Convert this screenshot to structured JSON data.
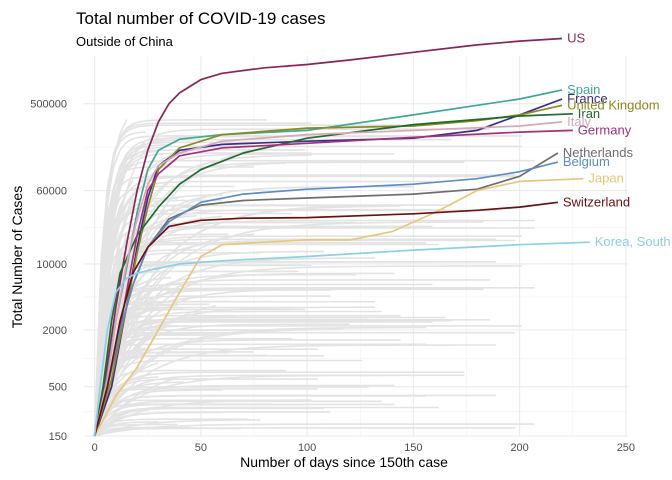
{
  "chart_data": {
    "type": "line",
    "title": "Total number of COVID-19 cases",
    "subtitle": "Outside of China",
    "xlabel": "Number of days since 150th case",
    "ylabel": "Total Number of Cases",
    "xlim": [
      -5,
      251
    ],
    "ylim": [
      150,
      1600000
    ],
    "yscale": "log",
    "xticks": [
      0,
      50,
      100,
      150,
      200,
      250
    ],
    "yticks": [
      150,
      500,
      2000,
      10000,
      60000,
      500000
    ],
    "ytick_labels": [
      "150",
      "500",
      "2000",
      "10000",
      "60000",
      "500000"
    ],
    "grid": true,
    "background_series_color": "#e3e3e3",
    "highlighted_series": [
      {
        "name": "US",
        "color": "#8b2456",
        "points": [
          [
            0,
            150
          ],
          [
            5,
            600
          ],
          [
            10,
            3500
          ],
          [
            15,
            16000
          ],
          [
            20,
            60000
          ],
          [
            25,
            160000
          ],
          [
            30,
            320000
          ],
          [
            35,
            500000
          ],
          [
            40,
            650000
          ],
          [
            50,
            900000
          ],
          [
            60,
            1050000
          ],
          [
            80,
            1200000
          ],
          [
            100,
            1300000
          ],
          [
            120,
            1450000
          ],
          [
            150,
            1750000
          ],
          [
            180,
            2100000
          ],
          [
            200,
            2300000
          ],
          [
            220,
            2450000
          ]
        ]
      },
      {
        "name": "Spain",
        "color": "#3fa896",
        "points": [
          [
            0,
            150
          ],
          [
            5,
            500
          ],
          [
            10,
            2500
          ],
          [
            15,
            9000
          ],
          [
            20,
            35000
          ],
          [
            25,
            100000
          ],
          [
            30,
            160000
          ],
          [
            40,
            210000
          ],
          [
            60,
            235000
          ],
          [
            100,
            260000
          ],
          [
            150,
            380000
          ],
          [
            180,
            480000
          ],
          [
            200,
            560000
          ],
          [
            220,
            700000
          ]
        ]
      },
      {
        "name": "France",
        "color": "#3a2c8c",
        "points": [
          [
            0,
            150
          ],
          [
            8,
            500
          ],
          [
            15,
            3500
          ],
          [
            20,
            15000
          ],
          [
            25,
            50000
          ],
          [
            30,
            110000
          ],
          [
            40,
            160000
          ],
          [
            60,
            185000
          ],
          [
            100,
            200000
          ],
          [
            150,
            215000
          ],
          [
            180,
            260000
          ],
          [
            200,
            380000
          ],
          [
            220,
            560000
          ]
        ]
      },
      {
        "name": "United Kingdom",
        "color": "#8a8a22",
        "points": [
          [
            0,
            150
          ],
          [
            8,
            600
          ],
          [
            15,
            3500
          ],
          [
            20,
            13000
          ],
          [
            25,
            40000
          ],
          [
            30,
            100000
          ],
          [
            40,
            170000
          ],
          [
            60,
            235000
          ],
          [
            100,
            275000
          ],
          [
            150,
            290000
          ],
          [
            180,
            330000
          ],
          [
            200,
            380000
          ],
          [
            220,
            480000
          ]
        ]
      },
      {
        "name": "Iran",
        "color": "#1e6b2c",
        "points": [
          [
            0,
            150
          ],
          [
            4,
            500
          ],
          [
            8,
            2500
          ],
          [
            12,
            8000
          ],
          [
            20,
            20000
          ],
          [
            30,
            40000
          ],
          [
            40,
            70000
          ],
          [
            50,
            100000
          ],
          [
            70,
            150000
          ],
          [
            100,
            215000
          ],
          [
            150,
            300000
          ],
          [
            180,
            340000
          ],
          [
            200,
            370000
          ],
          [
            225,
            390000
          ]
        ]
      },
      {
        "name": "Italy",
        "color": "#d8a8b8",
        "points": [
          [
            0,
            150
          ],
          [
            6,
            600
          ],
          [
            10,
            2500
          ],
          [
            15,
            10000
          ],
          [
            20,
            30000
          ],
          [
            25,
            70000
          ],
          [
            30,
            110000
          ],
          [
            40,
            150000
          ],
          [
            60,
            200000
          ],
          [
            100,
            235000
          ],
          [
            150,
            260000
          ],
          [
            200,
            290000
          ],
          [
            220,
            320000
          ]
        ]
      },
      {
        "name": "Germany",
        "color": "#a6307c",
        "points": [
          [
            0,
            150
          ],
          [
            6,
            500
          ],
          [
            10,
            1200
          ],
          [
            15,
            5000
          ],
          [
            20,
            20000
          ],
          [
            25,
            60000
          ],
          [
            30,
            90000
          ],
          [
            40,
            140000
          ],
          [
            60,
            170000
          ],
          [
            100,
            190000
          ],
          [
            150,
            220000
          ],
          [
            200,
            250000
          ],
          [
            225,
            260000
          ]
        ]
      },
      {
        "name": "Netherlands",
        "color": "#6e6e6e",
        "points": [
          [
            0,
            150
          ],
          [
            6,
            500
          ],
          [
            12,
            2000
          ],
          [
            18,
            6000
          ],
          [
            25,
            15000
          ],
          [
            35,
            30000
          ],
          [
            50,
            42000
          ],
          [
            70,
            47000
          ],
          [
            100,
            50000
          ],
          [
            150,
            55000
          ],
          [
            180,
            62000
          ],
          [
            200,
            85000
          ],
          [
            218,
            150000
          ]
        ]
      },
      {
        "name": "Belgium",
        "color": "#5a8ec6",
        "points": [
          [
            0,
            150
          ],
          [
            6,
            500
          ],
          [
            12,
            2000
          ],
          [
            18,
            6000
          ],
          [
            25,
            15000
          ],
          [
            35,
            28000
          ],
          [
            50,
            45000
          ],
          [
            70,
            55000
          ],
          [
            100,
            62000
          ],
          [
            150,
            70000
          ],
          [
            180,
            80000
          ],
          [
            200,
            95000
          ],
          [
            218,
            120000
          ]
        ]
      },
      {
        "name": "Japan",
        "color": "#e8c878",
        "points": [
          [
            0,
            150
          ],
          [
            10,
            400
          ],
          [
            20,
            800
          ],
          [
            30,
            2000
          ],
          [
            40,
            5000
          ],
          [
            50,
            12000
          ],
          [
            60,
            16000
          ],
          [
            80,
            17000
          ],
          [
            100,
            18000
          ],
          [
            120,
            18000
          ],
          [
            140,
            22000
          ],
          [
            160,
            35000
          ],
          [
            180,
            60000
          ],
          [
            200,
            75000
          ],
          [
            230,
            80000
          ]
        ]
      },
      {
        "name": "Switzerland",
        "color": "#6a1010",
        "points": [
          [
            0,
            150
          ],
          [
            6,
            500
          ],
          [
            12,
            2500
          ],
          [
            18,
            8000
          ],
          [
            25,
            15000
          ],
          [
            35,
            25000
          ],
          [
            50,
            29000
          ],
          [
            70,
            30500
          ],
          [
            100,
            31000
          ],
          [
            150,
            34000
          ],
          [
            180,
            37000
          ],
          [
            200,
            40000
          ],
          [
            218,
            45000
          ]
        ]
      },
      {
        "name": "Korea, South",
        "color": "#8ccfe6",
        "points": [
          [
            0,
            150
          ],
          [
            3,
            600
          ],
          [
            6,
            2000
          ],
          [
            10,
            5000
          ],
          [
            15,
            7000
          ],
          [
            20,
            8000
          ],
          [
            30,
            9000
          ],
          [
            40,
            10000
          ],
          [
            60,
            10800
          ],
          [
            100,
            12000
          ],
          [
            150,
            14000
          ],
          [
            200,
            16000
          ],
          [
            233,
            17000
          ]
        ]
      }
    ]
  }
}
